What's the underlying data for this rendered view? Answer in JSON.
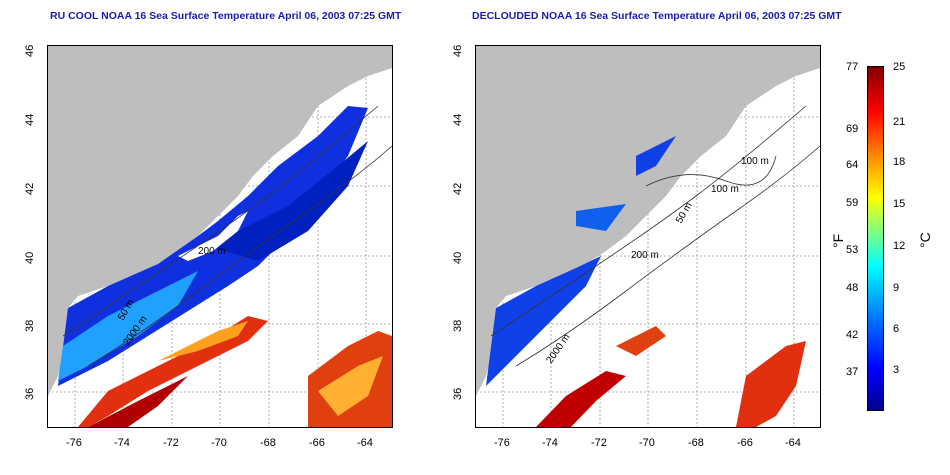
{
  "titles": {
    "left": "RU COOL NOAA 16 Sea Surface Temperature April 06, 2003 07:25 GMT",
    "right": "DECLOUDED NOAA 16 Sea Surface Temperature April 06, 2003 07:25 GMT"
  },
  "axes": {
    "lon_ticks": [
      "-76",
      "-74",
      "-72",
      "-70",
      "-68",
      "-66",
      "-64"
    ],
    "lat_ticks": [
      "36",
      "38",
      "40",
      "42",
      "44",
      "46"
    ]
  },
  "contour_labels": {
    "left": [
      "50 m",
      "200 m",
      "2000 m",
      "50 m"
    ],
    "right": [
      "100 m",
      "100 m",
      "50 m",
      "200 m",
      "2000 m"
    ]
  },
  "colorbar": {
    "fahrenheit_unit": "°F",
    "celsius_unit": "°C",
    "fahrenheit_ticks": [
      "77",
      "69",
      "64",
      "59",
      "53",
      "48",
      "42",
      "37"
    ],
    "celsius_ticks": [
      "25",
      "21",
      "18",
      "15",
      "12",
      "9",
      "6",
      "3"
    ]
  },
  "colors": {
    "title": "#1b1bb0",
    "land": "#bebebe",
    "water_cold": "#0030e0",
    "water_warm": "#e02000"
  }
}
